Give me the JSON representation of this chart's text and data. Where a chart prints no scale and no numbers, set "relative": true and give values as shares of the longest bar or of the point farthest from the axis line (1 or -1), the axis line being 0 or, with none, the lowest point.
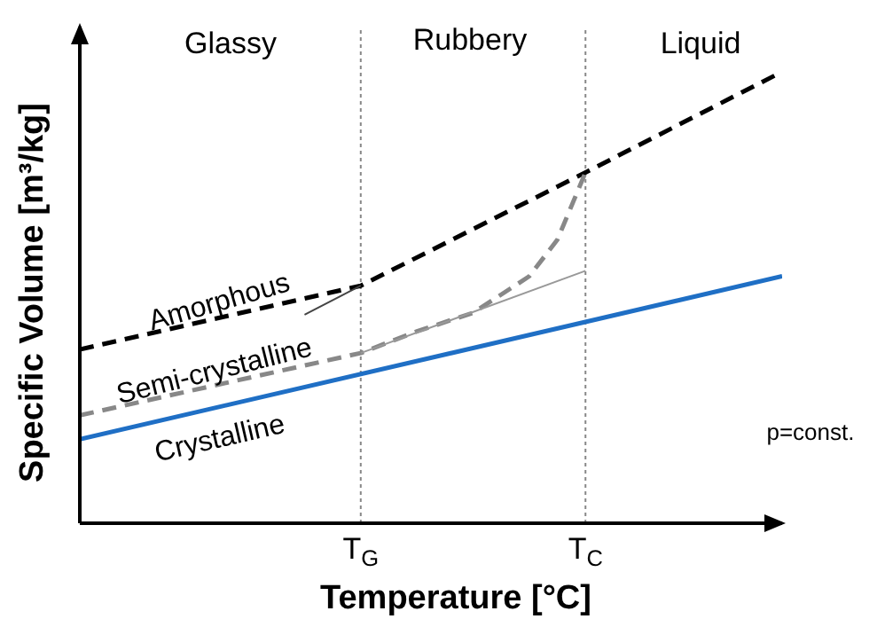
{
  "chart_data": {
    "type": "line",
    "relative": true,
    "xlabel": "Temperature [°C]",
    "ylabel": "Specific Volume [m³/kg]",
    "categories": [
      null,
      null,
      null,
      null,
      null,
      null,
      null,
      null,
      null,
      null,
      "T$_{G}$",
      null,
      null,
      null,
      null,
      null,
      null,
      null,
      "T$_{C}$",
      null,
      null,
      null,
      null,
      null,
      null,
      null
    ],
    "series": [
      {
        "name": "Amorphous",
        "color": "#000000",
        "line_style": "dashed",
        "values": [
          0.385,
          null,
          null,
          null,
          null,
          null,
          null,
          null,
          null,
          null,
          0.526,
          null,
          null,
          null,
          null,
          null,
          null,
          null,
          0.777,
          null,
          null,
          null,
          null,
          null,
          null,
          1.0
        ]
      },
      {
        "name": "Semi-crystalline",
        "color": "#888888",
        "line_style": "dashed",
        "values": [
          0.239,
          null,
          null,
          null,
          null,
          null,
          null,
          null,
          null,
          null,
          0.377,
          null,
          0.425,
          null,
          0.466,
          null,
          0.547,
          0.628,
          0.777,
          null,
          null,
          null,
          null,
          null,
          null,
          null
        ]
      },
      {
        "name": "Crystalline",
        "color": "#1f6fc5",
        "line_style": "solid",
        "values": [
          0.186,
          null,
          null,
          null,
          null,
          null,
          null,
          null,
          null,
          null,
          null,
          null,
          null,
          null,
          null,
          null,
          null,
          null,
          null,
          null,
          null,
          null,
          null,
          null,
          null,
          0.547
        ]
      },
      {
        "color": "#444444",
        "line_style": "solid",
        "values": [
          null,
          null,
          null,
          null,
          null,
          null,
          null,
          null,
          0.462,
          null,
          0.526,
          null,
          null,
          null,
          null,
          null,
          null,
          null,
          null,
          null,
          null,
          null,
          null,
          null,
          null,
          null
        ]
      },
      {
        "color": "#999999",
        "line_style": "solid",
        "values": [
          null,
          null,
          null,
          null,
          null,
          null,
          null,
          null,
          null,
          null,
          0.377,
          null,
          null,
          null,
          null,
          null,
          null,
          null,
          0.559,
          null,
          null,
          null,
          null,
          null,
          null,
          null
        ]
      }
    ],
    "ref_lines": [
      {
        "axis": "x",
        "value": "T$_{G}$",
        "color": "#888888",
        "line_style": "dotted"
      },
      {
        "axis": "x",
        "value": "T$_{C}$",
        "color": "#888888",
        "line_style": "dotted"
      }
    ],
    "annotations": [
      "Glassy",
      "Rubbery",
      "Liquid",
      "p=const."
    ]
  }
}
